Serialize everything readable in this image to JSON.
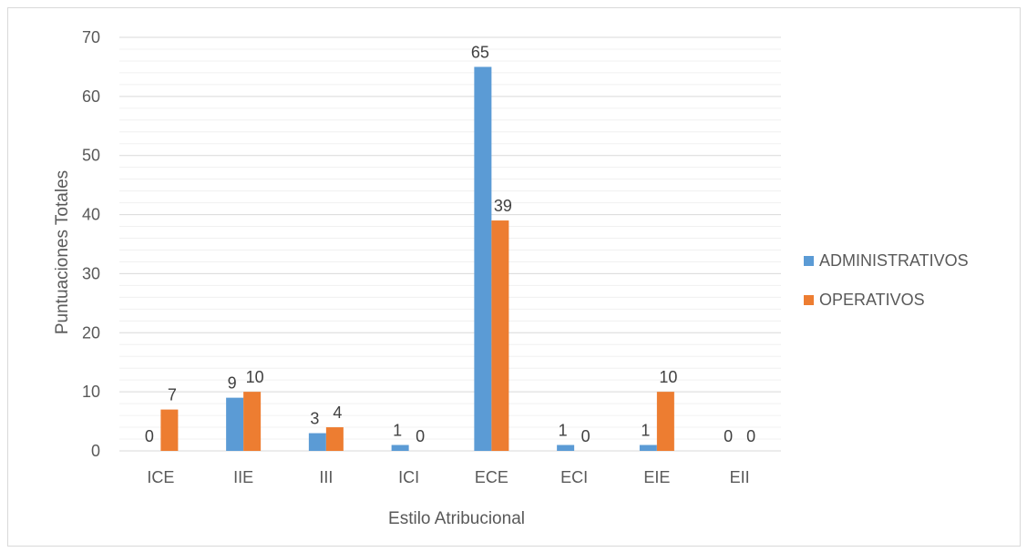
{
  "chart_data": {
    "type": "bar",
    "title": "",
    "xlabel": "Estilo Atribucional",
    "ylabel": "Puntuaciones Totales",
    "categories": [
      "ICE",
      "IIE",
      "III",
      "ICI",
      "ECE",
      "ECI",
      "EIE",
      "EII"
    ],
    "ylim": [
      0,
      70
    ],
    "yticks": [
      0,
      10,
      20,
      30,
      40,
      50,
      60,
      70
    ],
    "grid": true,
    "legend_position": "right",
    "series": [
      {
        "name": "ADMINISTRATIVOS",
        "color": "#5b9bd5",
        "values": [
          0,
          9,
          3,
          1,
          65,
          1,
          1,
          0
        ]
      },
      {
        "name": "OPERATIVOS",
        "color": "#ed7d31",
        "values": [
          7,
          10,
          4,
          0,
          39,
          0,
          10,
          0
        ]
      }
    ]
  }
}
